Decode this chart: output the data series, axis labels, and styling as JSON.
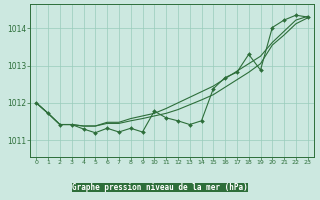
{
  "xlabel": "Graphe pression niveau de la mer (hPa)",
  "bg_color": "#cce8e0",
  "plot_bg_color": "#cce8e0",
  "bottom_bar_color": "#2d6e3a",
  "grid_color": "#99ccbb",
  "line_color": "#2d6e3a",
  "xlim": [
    -0.5,
    23.5
  ],
  "ylim": [
    1010.55,
    1014.65
  ],
  "yticks": [
    1011,
    1012,
    1013,
    1014
  ],
  "xticks": [
    0,
    1,
    2,
    3,
    4,
    5,
    6,
    7,
    8,
    9,
    10,
    11,
    12,
    13,
    14,
    15,
    16,
    17,
    18,
    19,
    20,
    21,
    22,
    23
  ],
  "hours": [
    0,
    1,
    2,
    3,
    4,
    5,
    6,
    7,
    8,
    9,
    10,
    11,
    12,
    13,
    14,
    15,
    16,
    17,
    18,
    19,
    20,
    21,
    22,
    23
  ],
  "line1": [
    1012.0,
    1011.72,
    1011.42,
    1011.42,
    1011.3,
    1011.2,
    1011.32,
    1011.22,
    1011.32,
    1011.22,
    1011.78,
    1011.6,
    1011.52,
    1011.42,
    1011.52,
    1012.38,
    1012.68,
    1012.82,
    1013.3,
    1012.88,
    1014.02,
    1014.22,
    1014.35,
    1014.3
  ],
  "line2": [
    1012.0,
    1011.72,
    1011.42,
    1011.42,
    1011.38,
    1011.38,
    1011.45,
    1011.45,
    1011.52,
    1011.58,
    1011.65,
    1011.72,
    1011.82,
    1011.95,
    1012.08,
    1012.22,
    1012.42,
    1012.62,
    1012.82,
    1013.05,
    1013.55,
    1013.82,
    1014.12,
    1014.28
  ],
  "line3": [
    1012.0,
    1011.72,
    1011.42,
    1011.42,
    1011.38,
    1011.38,
    1011.48,
    1011.48,
    1011.58,
    1011.65,
    1011.72,
    1011.85,
    1012.0,
    1012.15,
    1012.3,
    1012.45,
    1012.65,
    1012.85,
    1013.05,
    1013.25,
    1013.62,
    1013.92,
    1014.22,
    1014.32
  ]
}
